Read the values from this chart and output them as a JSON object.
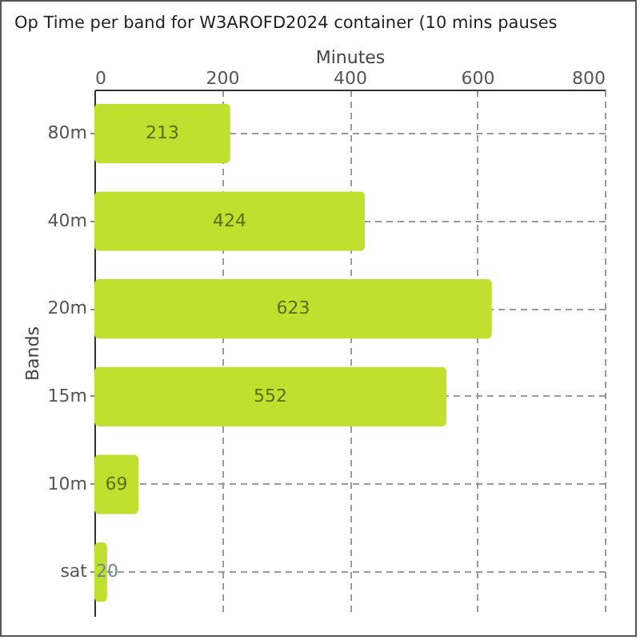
{
  "chart_data": {
    "type": "bar",
    "orientation": "horizontal",
    "title": "Op Time per band for W3AROFD2024 container (10 mins pauses",
    "xlabel": "Minutes",
    "ylabel": "Bands",
    "categories": [
      "80m",
      "40m",
      "20m",
      "15m",
      "10m",
      "sat"
    ],
    "values": [
      213,
      424,
      623,
      552,
      69,
      20
    ],
    "color": "#c0e030",
    "xlim": [
      0,
      800
    ],
    "xticks": [
      0,
      200,
      400,
      600,
      800
    ],
    "grid": true,
    "data_labels": true
  }
}
